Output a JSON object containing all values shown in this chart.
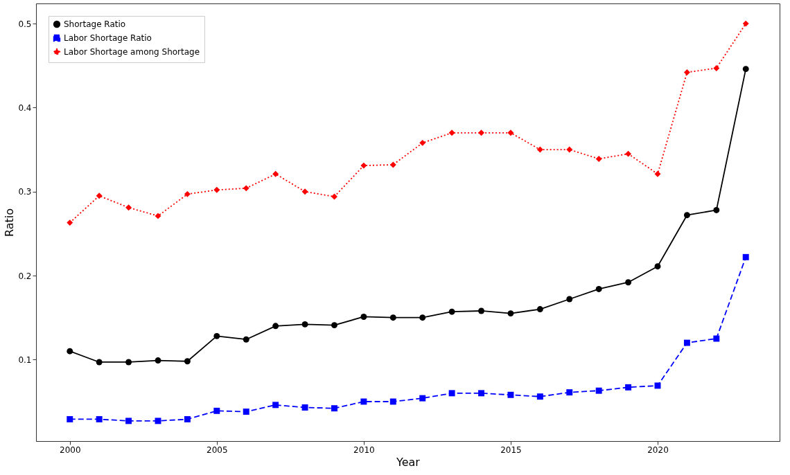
{
  "chart_data": {
    "type": "line",
    "xlabel": "Year",
    "ylabel": "Ratio",
    "x": [
      2000,
      2001,
      2002,
      2003,
      2004,
      2005,
      2006,
      2007,
      2008,
      2009,
      2010,
      2011,
      2012,
      2013,
      2014,
      2015,
      2016,
      2017,
      2018,
      2019,
      2020,
      2021,
      2022,
      2023
    ],
    "series": [
      {
        "name": "Shortage Ratio",
        "color": "#000000",
        "marker": "circle",
        "line_style": "solid",
        "values": [
          0.11,
          0.097,
          0.097,
          0.099,
          0.098,
          0.128,
          0.124,
          0.14,
          0.142,
          0.141,
          0.151,
          0.15,
          0.15,
          0.157,
          0.158,
          0.155,
          0.16,
          0.172,
          0.184,
          0.192,
          0.211,
          0.272,
          0.278,
          0.446
        ]
      },
      {
        "name": "Labor Shortage Ratio",
        "color": "#0000ff",
        "marker": "square",
        "line_style": "dashed",
        "values": [
          0.029,
          0.029,
          0.027,
          0.027,
          0.029,
          0.039,
          0.038,
          0.046,
          0.043,
          0.042,
          0.05,
          0.05,
          0.054,
          0.06,
          0.06,
          0.058,
          0.056,
          0.061,
          0.063,
          0.067,
          0.069,
          0.12,
          0.125,
          0.222
        ]
      },
      {
        "name": "Labor Shortage among Shortage",
        "color": "#ff0000",
        "marker": "diamond",
        "line_style": "dotted",
        "values": [
          0.263,
          0.295,
          0.281,
          0.271,
          0.297,
          0.302,
          0.304,
          0.321,
          0.3,
          0.294,
          0.331,
          0.332,
          0.358,
          0.37,
          0.37,
          0.37,
          0.35,
          0.35,
          0.339,
          0.345,
          0.321,
          0.442,
          0.447,
          0.5
        ]
      }
    ],
    "xlim": [
      1998.85,
      2024.15
    ],
    "ylim": [
      0.003,
      0.524
    ],
    "xticks": [
      2000,
      2005,
      2010,
      2015,
      2020
    ],
    "yticks": [
      0.1,
      0.2,
      0.3,
      0.4,
      0.5
    ],
    "grid": false,
    "legend": "top left"
  }
}
